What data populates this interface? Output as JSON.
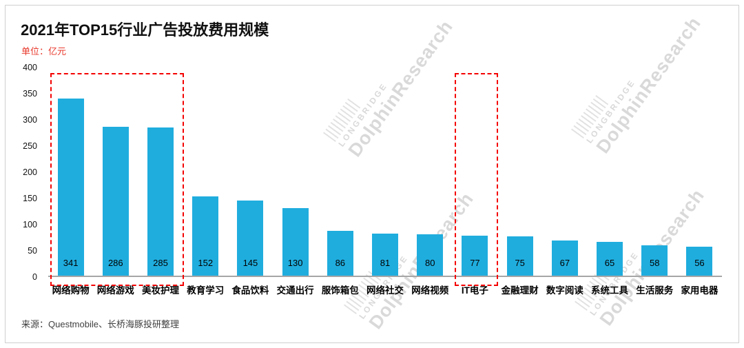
{
  "header": {
    "title": "2021年TOP15行业广告投放费用规模",
    "unit_label": "单位：亿元"
  },
  "chart_data": {
    "type": "bar",
    "title": "2021年TOP15行业广告投放费用规模",
    "unit_label": "单位：亿元",
    "categories": [
      "网络购物",
      "网络游戏",
      "美妆护理",
      "教育学习",
      "食品饮料",
      "交通出行",
      "服饰箱包",
      "网络社交",
      "网络视频",
      "IT电子",
      "金融理财",
      "数字阅读",
      "系统工具",
      "生活服务",
      "家用电器"
    ],
    "values": [
      341,
      286,
      285,
      152,
      145,
      130,
      86,
      81,
      80,
      77,
      75,
      67,
      65,
      58,
      56
    ],
    "ylim": [
      0,
      400
    ],
    "yticks": [
      0,
      50,
      100,
      150,
      200,
      250,
      300,
      350,
      400
    ],
    "bar_color": "#1fadde",
    "grid": false,
    "legend": false,
    "value_labels": "inside-bottom",
    "highlights": [
      {
        "start_index": 0,
        "end_index": 2,
        "color": "#f40000",
        "style": "dashed"
      },
      {
        "start_index": 9,
        "end_index": 9,
        "color": "#f40000",
        "style": "dashed"
      }
    ]
  },
  "footer": {
    "source": "来源：Questmobile、长桥海豚投研整理"
  },
  "watermark": {
    "line1": "LONGBRIDGE",
    "line2": "DolphinResearch"
  }
}
